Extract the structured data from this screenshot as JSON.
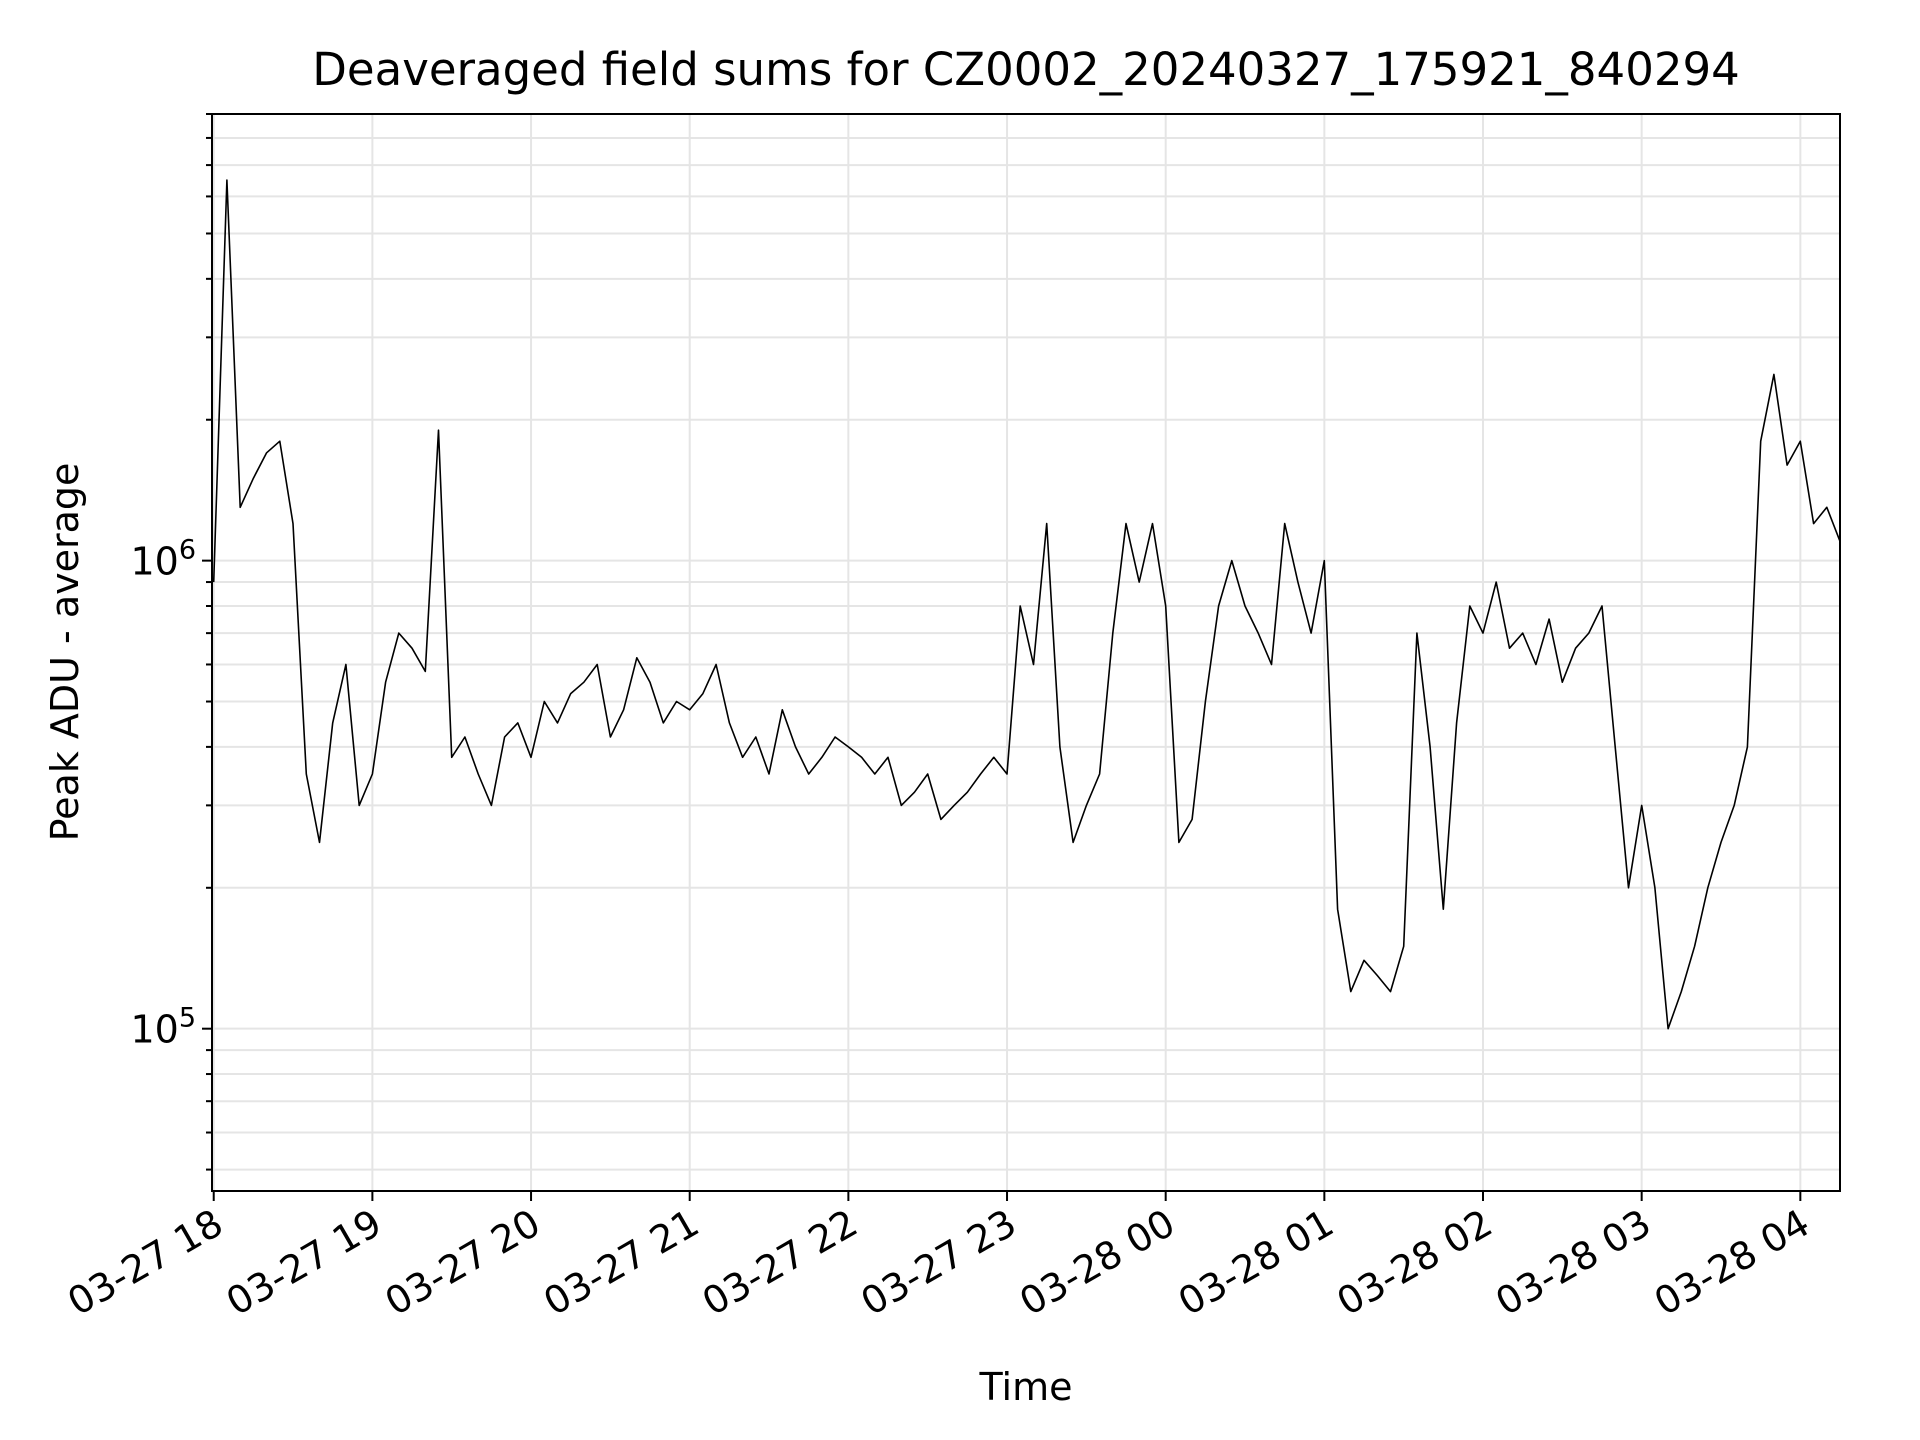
{
  "chart_data": {
    "type": "line",
    "title": "Deaveraged field sums for CZ0002_20240327_175921_840294",
    "xlabel": "Time",
    "ylabel": "Peak ADU - average",
    "yscale": "log",
    "ylim": [
      45000,
      9000000
    ],
    "xlim": [
      "2024-03-27 17:59:21",
      "2024-03-28 04:15:00"
    ],
    "grid": true,
    "legend": "none",
    "x_tick_labels": [
      "03-27 18",
      "03-27 19",
      "03-27 20",
      "03-27 21",
      "03-27 22",
      "03-27 23",
      "03-28 00",
      "03-28 01",
      "03-28 02",
      "03-28 03",
      "03-28 04"
    ],
    "y_tick_labels": [
      {
        "base": "10",
        "exp": "5",
        "value": 100000
      },
      {
        "base": "10",
        "exp": "6",
        "value": 1000000
      }
    ],
    "colors": {
      "line": "#000000",
      "grid": "#e5e5e5",
      "axes": "#000000"
    },
    "series": [
      {
        "x": [
          "2024-03-27 18:00",
          "2024-03-27 18:05",
          "2024-03-27 18:10",
          "2024-03-27 18:15",
          "2024-03-27 18:20",
          "2024-03-27 18:25",
          "2024-03-27 18:30",
          "2024-03-27 18:35",
          "2024-03-27 18:40",
          "2024-03-27 18:45",
          "2024-03-27 18:50",
          "2024-03-27 18:55",
          "2024-03-27 19:00",
          "2024-03-27 19:05",
          "2024-03-27 19:10",
          "2024-03-27 19:15",
          "2024-03-27 19:20",
          "2024-03-27 19:25",
          "2024-03-27 19:30",
          "2024-03-27 19:35",
          "2024-03-27 19:40",
          "2024-03-27 19:45",
          "2024-03-27 19:50",
          "2024-03-27 19:55",
          "2024-03-27 20:00",
          "2024-03-27 20:05",
          "2024-03-27 20:10",
          "2024-03-27 20:15",
          "2024-03-27 20:20",
          "2024-03-27 20:25",
          "2024-03-27 20:30",
          "2024-03-27 20:35",
          "2024-03-27 20:40",
          "2024-03-27 20:45",
          "2024-03-27 20:50",
          "2024-03-27 20:55",
          "2024-03-27 21:00",
          "2024-03-27 21:05",
          "2024-03-27 21:10",
          "2024-03-27 21:15",
          "2024-03-27 21:20",
          "2024-03-27 21:25",
          "2024-03-27 21:30",
          "2024-03-27 21:35",
          "2024-03-27 21:40",
          "2024-03-27 21:45",
          "2024-03-27 21:50",
          "2024-03-27 21:55",
          "2024-03-27 22:00",
          "2024-03-27 22:05",
          "2024-03-27 22:10",
          "2024-03-27 22:15",
          "2024-03-27 22:20",
          "2024-03-27 22:25",
          "2024-03-27 22:30",
          "2024-03-27 22:35",
          "2024-03-27 22:40",
          "2024-03-27 22:45",
          "2024-03-27 22:50",
          "2024-03-27 22:55",
          "2024-03-27 23:00",
          "2024-03-27 23:05",
          "2024-03-27 23:10",
          "2024-03-27 23:15",
          "2024-03-27 23:20",
          "2024-03-27 23:25",
          "2024-03-27 23:30",
          "2024-03-27 23:35",
          "2024-03-27 23:40",
          "2024-03-27 23:45",
          "2024-03-27 23:50",
          "2024-03-27 23:55",
          "2024-03-28 00:00",
          "2024-03-28 00:05",
          "2024-03-28 00:10",
          "2024-03-28 00:15",
          "2024-03-28 00:20",
          "2024-03-28 00:25",
          "2024-03-28 00:30",
          "2024-03-28 00:35",
          "2024-03-28 00:40",
          "2024-03-28 00:45",
          "2024-03-28 00:50",
          "2024-03-28 00:55",
          "2024-03-28 01:00",
          "2024-03-28 01:05",
          "2024-03-28 01:10",
          "2024-03-28 01:15",
          "2024-03-28 01:20",
          "2024-03-28 01:25",
          "2024-03-28 01:30",
          "2024-03-28 01:35",
          "2024-03-28 01:40",
          "2024-03-28 01:45",
          "2024-03-28 01:50",
          "2024-03-28 01:55",
          "2024-03-28 02:00",
          "2024-03-28 02:05",
          "2024-03-28 02:10",
          "2024-03-28 02:15",
          "2024-03-28 02:20",
          "2024-03-28 02:25",
          "2024-03-28 02:30",
          "2024-03-28 02:35",
          "2024-03-28 02:40",
          "2024-03-28 02:45",
          "2024-03-28 02:50",
          "2024-03-28 02:55",
          "2024-03-28 03:00",
          "2024-03-28 03:05",
          "2024-03-28 03:10",
          "2024-03-28 03:15",
          "2024-03-28 03:20",
          "2024-03-28 03:25",
          "2024-03-28 03:30",
          "2024-03-28 03:35",
          "2024-03-28 03:40",
          "2024-03-28 03:45",
          "2024-03-28 03:50",
          "2024-03-28 03:55",
          "2024-03-28 04:00",
          "2024-03-28 04:05",
          "2024-03-28 04:10",
          "2024-03-28 04:15"
        ],
        "y": [
          900000,
          6500000,
          1300000,
          1500000,
          1700000,
          1800000,
          1200000,
          350000,
          250000,
          450000,
          600000,
          300000,
          350000,
          550000,
          700000,
          650000,
          580000,
          1900000,
          380000,
          420000,
          350000,
          300000,
          420000,
          450000,
          380000,
          500000,
          450000,
          520000,
          550000,
          600000,
          420000,
          480000,
          620000,
          550000,
          450000,
          500000,
          480000,
          520000,
          600000,
          450000,
          380000,
          420000,
          350000,
          480000,
          400000,
          350000,
          380000,
          420000,
          400000,
          380000,
          350000,
          380000,
          300000,
          320000,
          350000,
          280000,
          300000,
          320000,
          350000,
          380000,
          350000,
          800000,
          600000,
          1200000,
          400000,
          250000,
          300000,
          350000,
          700000,
          1200000,
          900000,
          1200000,
          800000,
          250000,
          280000,
          500000,
          800000,
          1000000,
          800000,
          700000,
          600000,
          1200000,
          900000,
          700000,
          1000000,
          180000,
          120000,
          140000,
          130000,
          120000,
          150000,
          700000,
          400000,
          180000,
          450000,
          800000,
          700000,
          900000,
          650000,
          700000,
          600000,
          750000,
          550000,
          650000,
          700000,
          800000,
          400000,
          200000,
          300000,
          200000,
          100000,
          120000,
          150000,
          200000,
          250000,
          300000,
          400000,
          1800000,
          2500000,
          1600000,
          1800000,
          1200000,
          1300000,
          1100000
        ]
      }
    ]
  }
}
